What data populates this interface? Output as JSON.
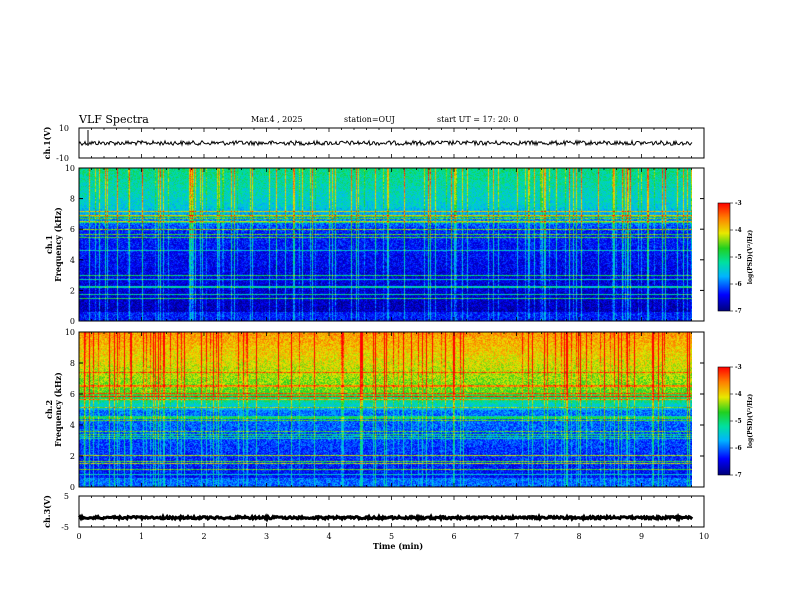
{
  "header": {
    "title": "VLF Spectra",
    "date": "Mar.4 , 2025",
    "station": "station=OUJ",
    "start": "start UT = 17: 20: 0"
  },
  "chart_data": [
    {
      "type": "line",
      "ylabel": "ch.1(V)",
      "ylim": [
        -10,
        10
      ],
      "yticks": [
        "10",
        "-10"
      ],
      "xlim": [
        0,
        10
      ],
      "baseline_value": 0,
      "trace_color": "#000000"
    },
    {
      "type": "heatmap",
      "ylabel_channel": "ch.1",
      "ylabel": "Frequency (kHz)",
      "ylim": [
        0,
        10
      ],
      "yticks": [
        "0",
        "2",
        "4",
        "6",
        "8",
        "10"
      ],
      "xlim": [
        0,
        10
      ],
      "colorbar": {
        "label": "log(PSD)(V²/Hz)",
        "range": [
          -7,
          -3
        ],
        "ticks": [
          "-3",
          "-4",
          "-5",
          "-6",
          "-7"
        ]
      },
      "intensity": "lower"
    },
    {
      "type": "heatmap",
      "ylabel_channel": "ch.2",
      "ylabel": "Frequency (kHz)",
      "ylim": [
        0,
        10
      ],
      "yticks": [
        "0",
        "2",
        "4",
        "6",
        "8",
        "10"
      ],
      "xlim": [
        0,
        10
      ],
      "colorbar": {
        "label": "log(PSD)(V²/Hz)",
        "range": [
          -7,
          -3
        ],
        "ticks": [
          "-3",
          "-4",
          "-5",
          "-6",
          "-7"
        ]
      },
      "intensity": "higher"
    },
    {
      "type": "line",
      "ylabel": "ch.3(V)",
      "ylim": [
        -5,
        5
      ],
      "yticks": [
        "5",
        "-5"
      ],
      "xlim": [
        0,
        10
      ],
      "xlabel": "Time (min)",
      "xticks": [
        "0",
        "1",
        "2",
        "3",
        "4",
        "5",
        "6",
        "7",
        "8",
        "9",
        "10"
      ],
      "baseline_value": -2,
      "trace_color": "#000000"
    }
  ]
}
